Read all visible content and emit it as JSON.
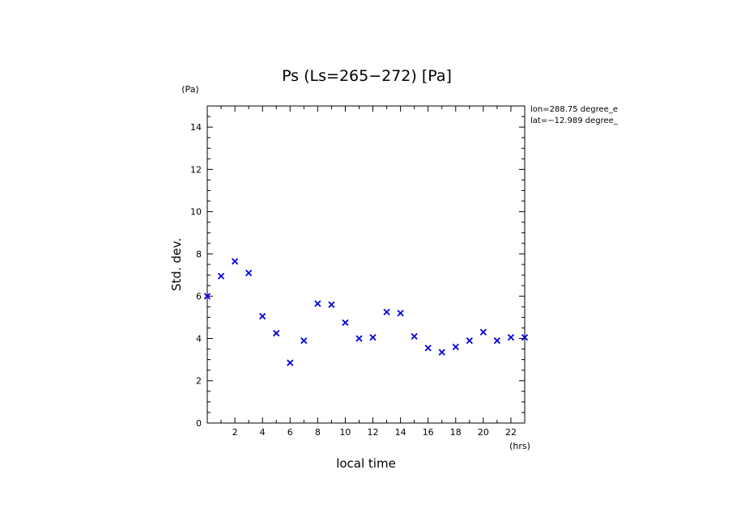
{
  "chart_data": {
    "type": "scatter",
    "title": "Ps (Ls=265−272) [Pa]",
    "xlabel": "local time",
    "ylabel": "Std. dev.",
    "x_unit": "(hrs)",
    "y_unit": "(Pa)",
    "xlim": [
      0,
      23
    ],
    "ylim": [
      0,
      15
    ],
    "x_ticks": [
      2,
      4,
      6,
      8,
      10,
      12,
      14,
      16,
      18,
      20,
      22
    ],
    "y_ticks": [
      0,
      2,
      4,
      6,
      8,
      10,
      12,
      14
    ],
    "grid": false,
    "marker": "x",
    "marker_color": "#0000dd",
    "annotations": [
      "lon=288.75 degree_e",
      "lat=−12.989 degree_"
    ],
    "series": [
      {
        "name": "Ps std. dev.",
        "x": [
          0,
          1,
          2,
          3,
          4,
          5,
          6,
          7,
          8,
          9,
          10,
          11,
          12,
          13,
          14,
          15,
          16,
          17,
          18,
          19,
          20,
          21,
          22,
          23
        ],
        "y": [
          6.0,
          6.95,
          7.65,
          7.1,
          5.05,
          4.25,
          2.85,
          3.9,
          5.65,
          5.6,
          4.75,
          4.0,
          4.05,
          5.25,
          5.2,
          4.1,
          3.55,
          3.35,
          3.6,
          3.9,
          4.3,
          3.9,
          4.05,
          4.05
        ]
      }
    ]
  }
}
